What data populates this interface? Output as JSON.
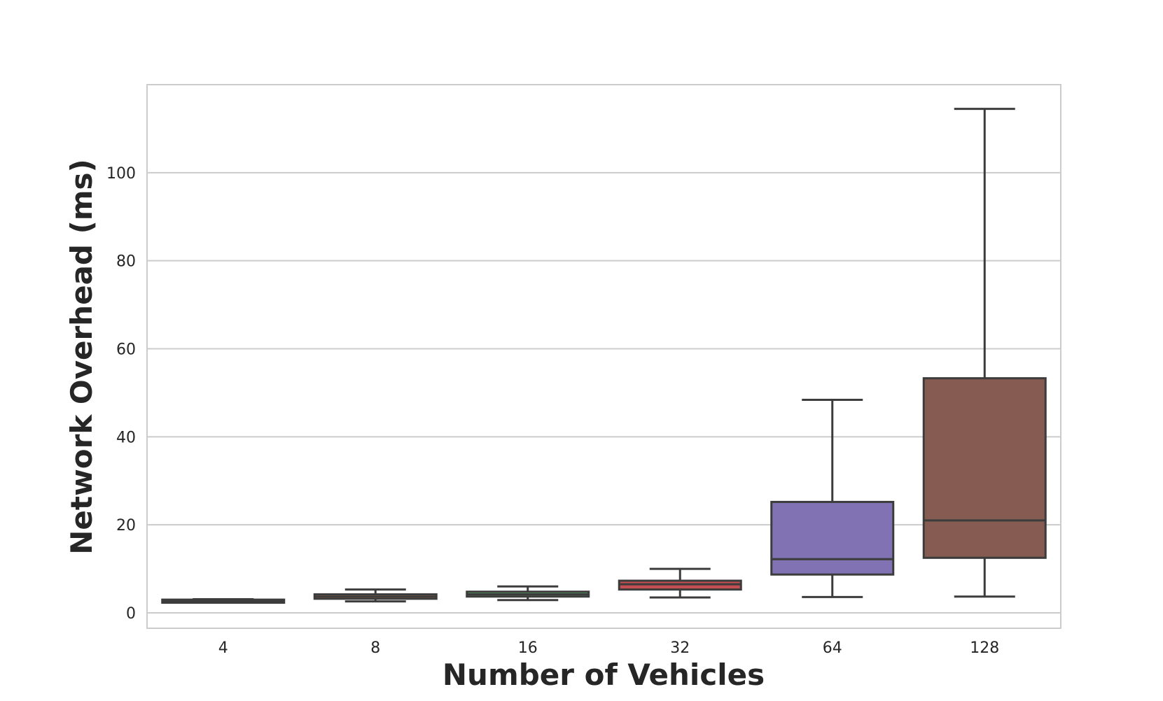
{
  "chart_data": {
    "type": "box",
    "xlabel": "Number of Vehicles",
    "ylabel": "Network Overhead (ms)",
    "ylim": [
      -3.5,
      120
    ],
    "yticks": [
      0,
      20,
      40,
      60,
      80,
      100
    ],
    "grid": "horizontal",
    "categories": [
      "4",
      "8",
      "16",
      "32",
      "64",
      "128"
    ],
    "boxes": [
      {
        "category": "4",
        "whisker_low": 2.3,
        "q1": 2.3,
        "median": 2.7,
        "q3": 3.0,
        "whisker_high": 3.1,
        "color": "#4c72b0"
      },
      {
        "category": "8",
        "whisker_low": 2.6,
        "q1": 3.2,
        "median": 3.7,
        "q3": 4.2,
        "whisker_high": 5.3,
        "color": "#dd8452"
      },
      {
        "category": "16",
        "whisker_low": 2.9,
        "q1": 3.7,
        "median": 4.2,
        "q3": 4.8,
        "whisker_high": 6.0,
        "color": "#55a868"
      },
      {
        "category": "32",
        "whisker_low": 3.5,
        "q1": 5.3,
        "median": 6.5,
        "q3": 7.3,
        "whisker_high": 10.0,
        "color": "#c44e52"
      },
      {
        "category": "64",
        "whisker_low": 3.6,
        "q1": 8.7,
        "median": 12.2,
        "q3": 25.2,
        "whisker_high": 48.4,
        "color": "#8172b3"
      },
      {
        "category": "128",
        "whisker_low": 3.7,
        "q1": 12.5,
        "median": 21.0,
        "q3": 53.3,
        "whisker_high": 114.5,
        "color": "#855b52"
      }
    ],
    "colors": {
      "box_edge": "#3c3c3c",
      "grid": "#cccccc",
      "frame": "#cccccc"
    }
  }
}
